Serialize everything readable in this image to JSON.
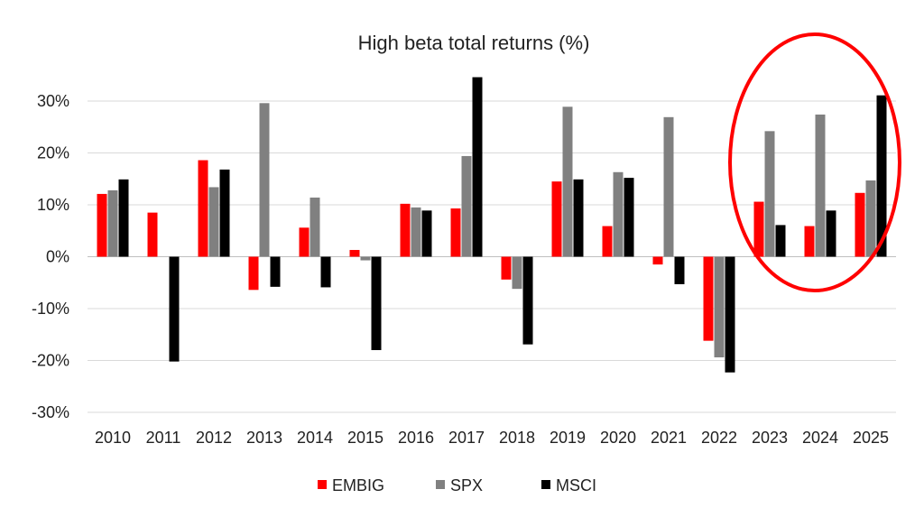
{
  "chart_data": {
    "type": "bar",
    "title": "High beta total returns (%)",
    "categories": [
      "2010",
      "2011",
      "2012",
      "2013",
      "2014",
      "2015",
      "2016",
      "2017",
      "2018",
      "2019",
      "2020",
      "2021",
      "2022",
      "2023",
      "2024",
      "2025"
    ],
    "series": [
      {
        "name": "EMBIG",
        "color": "#ff0000",
        "values": [
          12.1,
          8.5,
          18.6,
          -6.4,
          5.6,
          1.3,
          10.2,
          9.3,
          -4.4,
          14.5,
          5.9,
          -1.5,
          -16.2,
          10.6,
          5.9,
          12.3
        ]
      },
      {
        "name": "SPX",
        "color": "#808080",
        "values": [
          12.8,
          0.0,
          13.4,
          29.6,
          11.4,
          -0.7,
          9.5,
          19.4,
          -6.2,
          28.9,
          16.3,
          26.9,
          -19.4,
          24.2,
          27.4,
          14.7
        ]
      },
      {
        "name": "MSCI",
        "color": "#000000",
        "values": [
          14.9,
          -20.2,
          16.8,
          -5.8,
          -5.9,
          -18.0,
          8.9,
          34.6,
          -16.9,
          14.9,
          15.2,
          -5.3,
          -22.3,
          6.1,
          8.9,
          31.1
        ]
      }
    ],
    "y_ticks": [
      "30%",
      "20%",
      "10%",
      "0%",
      "-10%",
      "-20%",
      "-30%"
    ],
    "ylim": [
      -30,
      30
    ],
    "grid": true,
    "legend_position": "bottom",
    "annotation": {
      "type": "ellipse",
      "color": "#ff0000",
      "highlights": [
        "2023",
        "2024",
        "2025"
      ]
    }
  }
}
